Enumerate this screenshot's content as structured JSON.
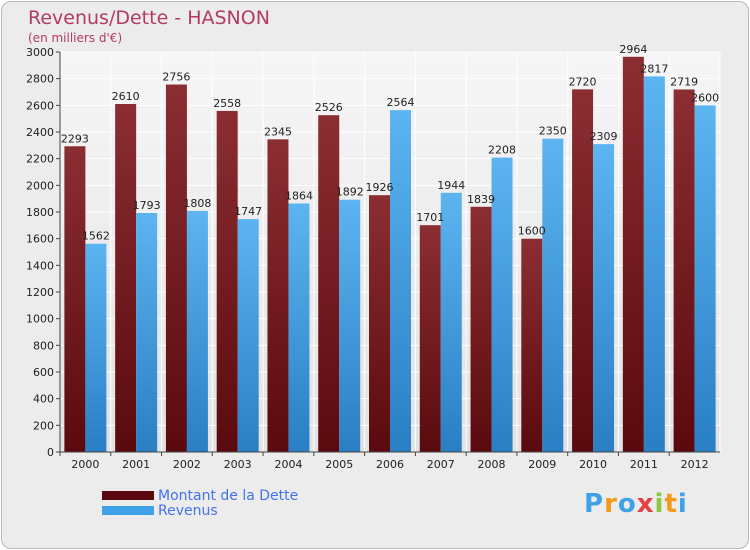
{
  "chart_data": {
    "type": "bar",
    "title": "Revenus/Dette - HASNON",
    "subtitle": "(en milliers d'€)",
    "categories": [
      "2000",
      "2001",
      "2002",
      "2003",
      "2004",
      "2005",
      "2006",
      "2007",
      "2008",
      "2009",
      "2010",
      "2011",
      "2012"
    ],
    "series": [
      {
        "name": "Montant de la Dette",
        "color": "#7a1a1e",
        "labels": [
          "2293",
          "2610",
          "2756",
          "2558",
          "2345",
          "2526",
          "1926",
          "1701",
          "1839",
          "1600",
          "2720",
          "2964",
          "2719"
        ],
        "values": [
          2293,
          2610,
          2756,
          2558,
          2345,
          2526,
          1926,
          1701,
          1839,
          1600,
          2720,
          2964,
          2719
        ]
      },
      {
        "name": "Revenus",
        "color": "#3fa1e6",
        "labels": [
          "1562",
          "1793",
          "1808",
          "1747",
          "1864",
          "1892",
          "2564",
          "1944",
          "2208",
          "2350",
          "2309",
          "2817",
          "2600"
        ],
        "values": [
          1562,
          1793,
          1808,
          1747,
          1864,
          1892,
          2564,
          1944,
          2208,
          2350,
          2309,
          2817,
          2600
        ]
      }
    ],
    "yticks": [
      "0",
      "200",
      "400",
      "600",
      "800",
      "1000",
      "1200",
      "1400",
      "1600",
      "1800",
      "2000",
      "2200",
      "2400",
      "2600",
      "2800",
      "3000"
    ],
    "ylim": [
      0,
      3000
    ],
    "xlabel": "",
    "ylabel": "",
    "grid": true
  },
  "legend": {
    "items": [
      {
        "label": "Montant de la Dette",
        "color": "#5a0a0e"
      },
      {
        "label": "Revenus",
        "color": "#3fa1e6"
      }
    ]
  },
  "logo": {
    "letters": [
      "P",
      "r",
      "o",
      "x",
      "i",
      "t",
      "i"
    ],
    "colors": [
      "#3fa1e6",
      "#f29a1a",
      "#3fa1e6",
      "#e84040",
      "#8dc63f",
      "#f29a1a",
      "#3fa1e6"
    ]
  }
}
